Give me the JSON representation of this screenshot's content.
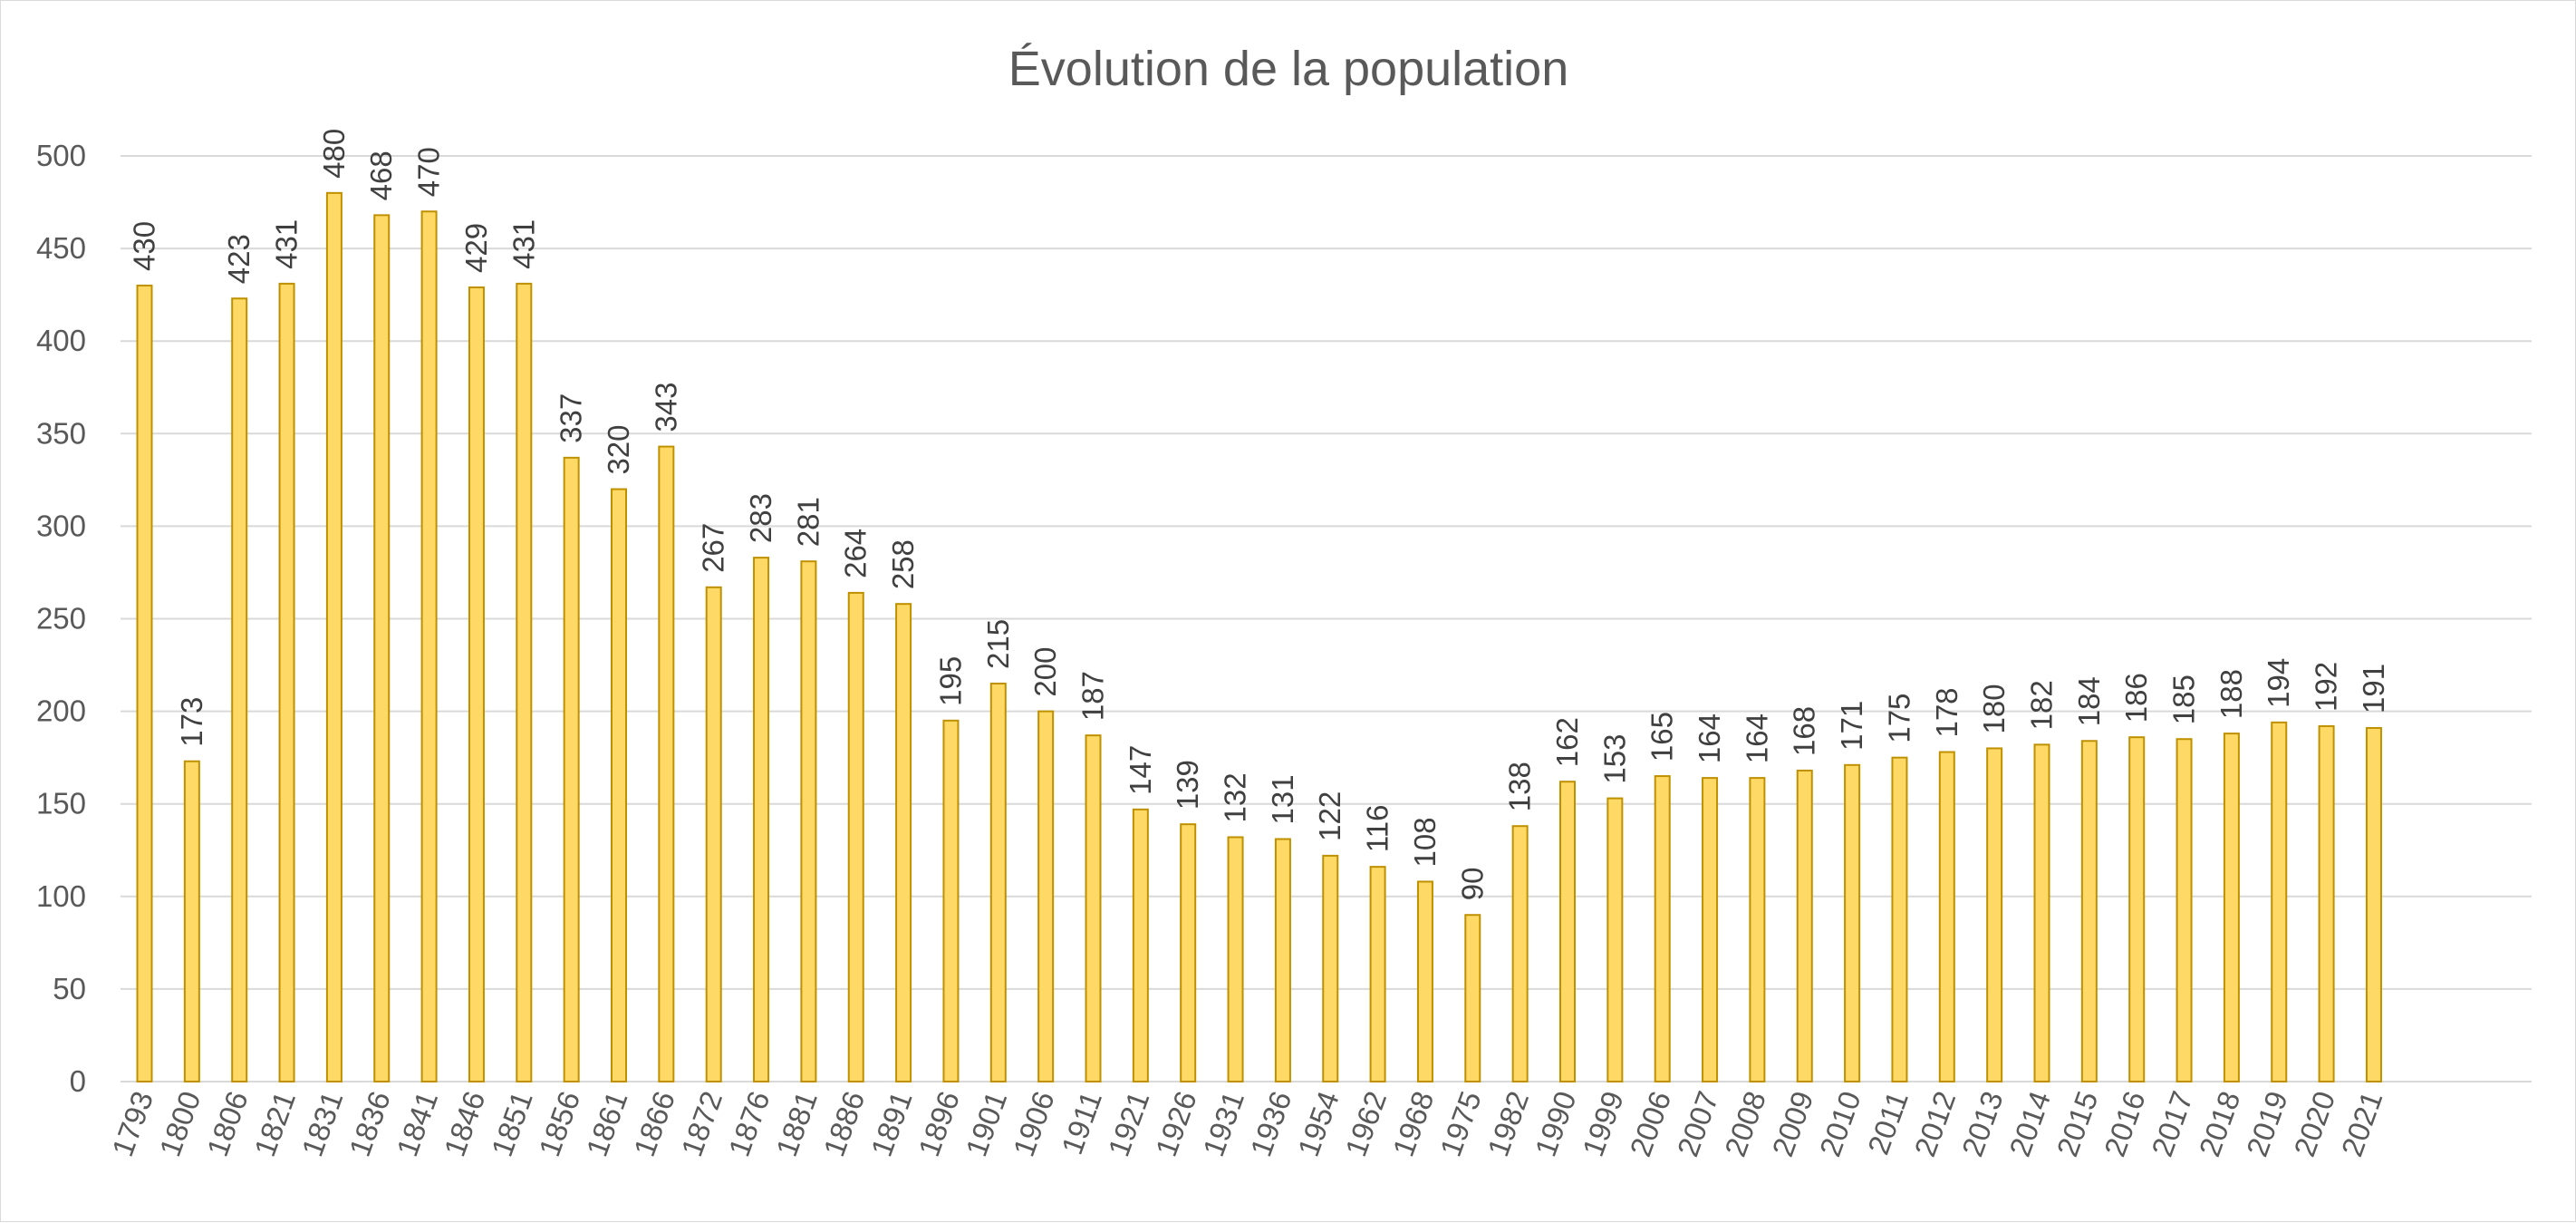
{
  "chart_data": {
    "type": "bar",
    "title": "Évolution de la population",
    "xlabel": "",
    "ylabel": "",
    "ylim": [
      0,
      500
    ],
    "yticks": [
      0,
      50,
      100,
      150,
      200,
      250,
      300,
      350,
      400,
      450,
      500
    ],
    "grid": true,
    "legend": "none",
    "colors": {
      "bar_fill": "#FFD966",
      "bar_stroke": "#BF9000",
      "grid": "#d9d9d9",
      "text": "#595959"
    },
    "categories": [
      "1793",
      "1800",
      "1806",
      "1821",
      "1831",
      "1836",
      "1841",
      "1846",
      "1851",
      "1856",
      "1861",
      "1866",
      "1872",
      "1876",
      "1881",
      "1886",
      "1891",
      "1896",
      "1901",
      "1906",
      "1911",
      "1921",
      "1926",
      "1931",
      "1936",
      "1954",
      "1962",
      "1968",
      "1975",
      "1982",
      "1990",
      "1999",
      "2006",
      "2007",
      "2008",
      "2009",
      "2010",
      "2011",
      "2012",
      "2013",
      "2014",
      "2015",
      "2016",
      "2017",
      "2018",
      "2019",
      "2020",
      "2021"
    ],
    "values": [
      430,
      173,
      423,
      431,
      480,
      468,
      470,
      429,
      431,
      337,
      320,
      343,
      267,
      283,
      281,
      264,
      258,
      195,
      215,
      200,
      187,
      147,
      139,
      132,
      131,
      122,
      116,
      108,
      90,
      138,
      162,
      153,
      165,
      164,
      164,
      168,
      171,
      175,
      178,
      180,
      182,
      184,
      186,
      185,
      188,
      194,
      192,
      191
    ]
  }
}
